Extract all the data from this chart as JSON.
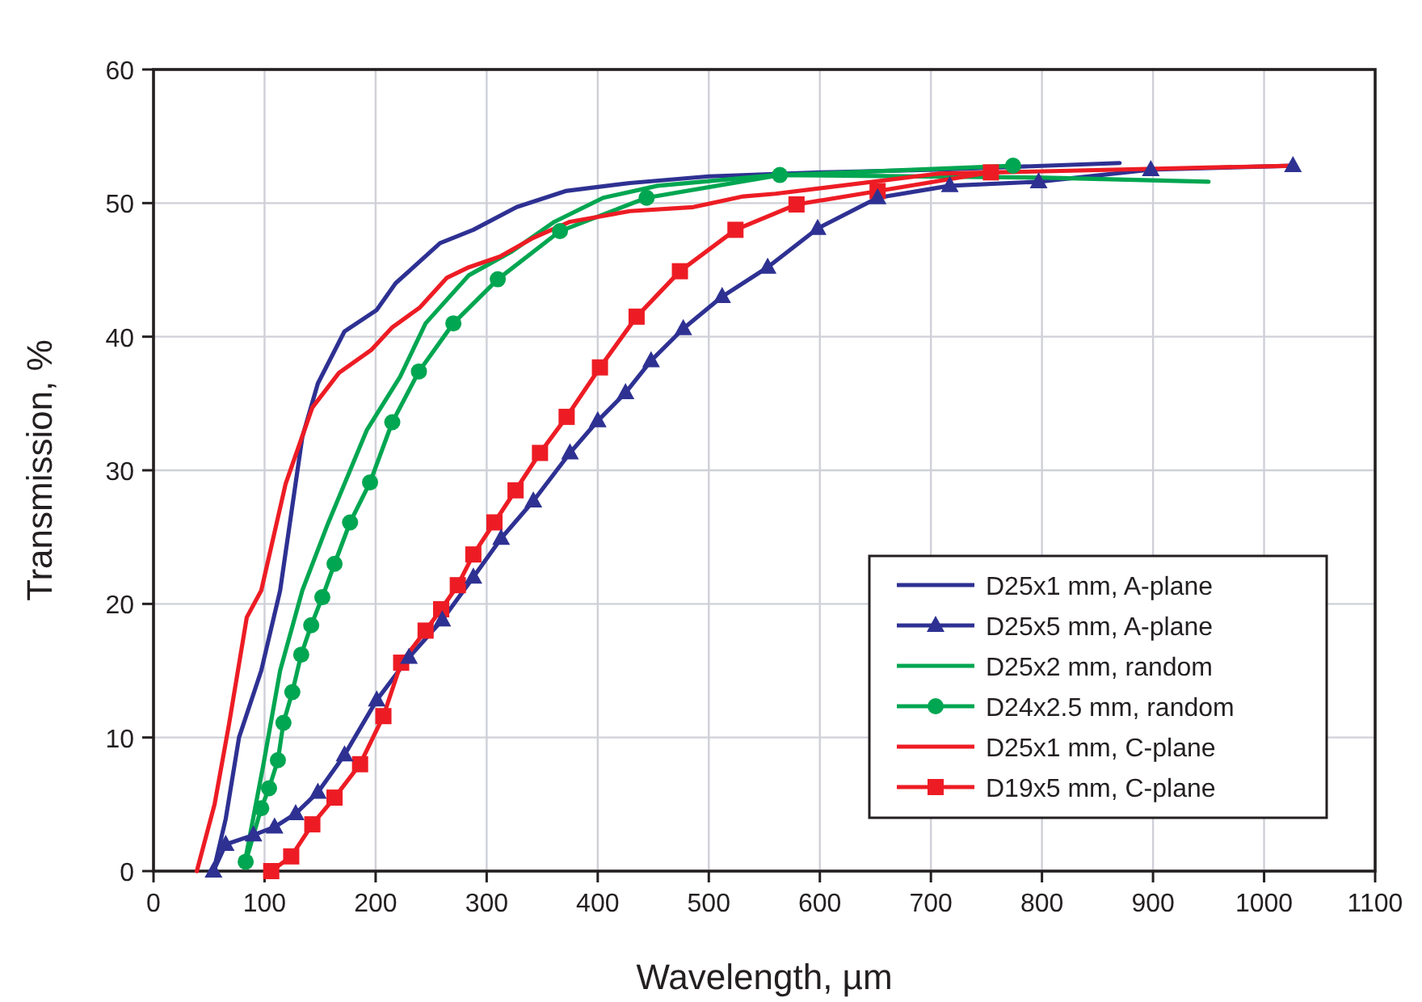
{
  "chart_data": {
    "type": "line",
    "xlabel": "Wavelength, µm",
    "ylabel": "Transmission, %",
    "xlim": [
      0,
      1100
    ],
    "ylim": [
      0,
      60
    ],
    "xticks": [
      0,
      100,
      200,
      300,
      400,
      500,
      600,
      700,
      800,
      900,
      1000,
      1100
    ],
    "yticks": [
      0,
      10,
      20,
      30,
      40,
      50,
      60
    ],
    "grid": true,
    "legend": "bottom right",
    "line_style": "solid",
    "series": [
      {
        "name": "D25x1 mm, A-plane",
        "color": "#2e3192",
        "marker": "none",
        "x": [
          54,
          65,
          77,
          97,
          114,
          134,
          148,
          172,
          201,
          218,
          258,
          288,
          327,
          371,
          429,
          500,
          600,
          706,
          870
        ],
        "values": [
          0,
          3.9,
          10,
          15,
          21,
          32.5,
          36.5,
          40.4,
          42,
          44,
          47,
          48,
          49.7,
          50.9,
          51.5,
          52,
          52.3,
          52.5,
          53
        ]
      },
      {
        "name": "D25x5 mm, A-plane",
        "color": "#2e3192",
        "marker": "triangle",
        "x": [
          54,
          65,
          90,
          109,
          128,
          148,
          172,
          201,
          230,
          260,
          288,
          313,
          342,
          375,
          400,
          425,
          448,
          477,
          512,
          553,
          598,
          652,
          717,
          797,
          898,
          1026
        ],
        "values": [
          0,
          2,
          2.7,
          3.3,
          4.3,
          5.9,
          8.7,
          12.8,
          16,
          18.8,
          22,
          24.9,
          27.7,
          31.3,
          33.7,
          35.8,
          38.2,
          40.6,
          43,
          45.2,
          48.1,
          50.4,
          51.3,
          51.6,
          52.5,
          52.8
        ]
      },
      {
        "name": "D25x2 mm, random",
        "color": "#00a651",
        "marker": "none",
        "x": [
          83,
          99,
          114,
          134,
          157,
          192,
          222,
          245,
          284,
          323,
          361,
          405,
          454,
          560,
          803,
          950
        ],
        "values": [
          1,
          8,
          15,
          21,
          26,
          33,
          37,
          41,
          44.6,
          46.4,
          48.6,
          50.4,
          51.3,
          52.1,
          51.9,
          51.6
        ]
      },
      {
        "name": "D24x2.5 mm, random",
        "color": "#00a651",
        "marker": "circle",
        "x": [
          83,
          97,
          104,
          112,
          117,
          125,
          133,
          142,
          152,
          163,
          177,
          195,
          215,
          239,
          270,
          310,
          366,
          444,
          564,
          774
        ],
        "values": [
          0.7,
          4.7,
          6.2,
          8.3,
          11.1,
          13.4,
          16.2,
          18.4,
          20.5,
          23,
          26.1,
          29.1,
          33.6,
          37.4,
          41,
          44.3,
          47.9,
          50.4,
          52.1,
          52.8
        ]
      },
      {
        "name": "D25x1 mm, C-plane",
        "color": "#ed1c24",
        "marker": "none",
        "x": [
          39,
          55,
          68,
          84,
          97,
          119,
          143,
          167,
          196,
          215,
          240,
          264,
          284,
          312,
          342,
          375,
          429,
          486,
          531,
          560,
          706,
          1026
        ],
        "values": [
          0,
          5,
          11,
          19,
          21,
          29,
          34.7,
          37.3,
          39,
          40.7,
          42.2,
          44.4,
          45.2,
          46,
          47.4,
          48.6,
          49.4,
          49.7,
          50.5,
          50.7,
          52.2,
          52.8
        ]
      },
      {
        "name": "D19x5 mm, C-plane",
        "color": "#ed1c24",
        "marker": "square",
        "x": [
          106,
          124,
          143,
          163,
          186,
          207,
          223,
          245,
          259,
          274,
          288,
          307,
          326,
          348,
          372,
          402,
          435,
          474,
          524,
          579,
          652,
          754
        ],
        "values": [
          0,
          1.1,
          3.5,
          5.5,
          8,
          11.6,
          15.6,
          18,
          19.6,
          21.4,
          23.7,
          26.1,
          28.5,
          31.3,
          34,
          37.7,
          41.5,
          44.9,
          48,
          49.9,
          50.9,
          52.3
        ]
      }
    ]
  }
}
